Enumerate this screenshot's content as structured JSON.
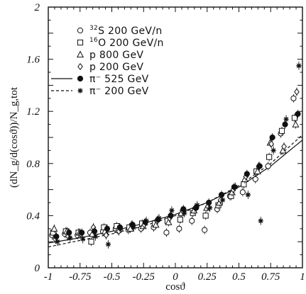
{
  "chart_data": {
    "type": "scatter",
    "xlabel": "cosϑ",
    "ylabel": "(dN_g/d(cosϑ))/N_g,tot",
    "xlim": [
      -1,
      1
    ],
    "ylim": [
      0,
      2
    ],
    "grid": false,
    "legend_position": "top-left",
    "x_ticks": [
      "-1",
      "-0.75",
      "-0.5",
      "-0.25",
      "0",
      "0.25",
      "0.5",
      "0.75",
      "1"
    ],
    "x_tick_values": [
      -1,
      -0.75,
      -0.5,
      -0.25,
      0,
      0.25,
      0.5,
      0.75,
      1
    ],
    "y_ticks": [
      "0",
      "0.4",
      "0.8",
      "1.2",
      "1.6",
      "2"
    ],
    "y_tick_values": [
      0,
      0.4,
      0.8,
      1.2,
      1.6,
      2
    ],
    "legend": [
      {
        "marker": "circle-open",
        "line": "none",
        "sup": "32",
        "label": "S 200 GeV/n"
      },
      {
        "marker": "square-open",
        "line": "none",
        "sup": "16",
        "label": "O 200 GeV/n"
      },
      {
        "marker": "triangle-open",
        "line": "none",
        "sup": "",
        "label": "p 800 GeV"
      },
      {
        "marker": "diamond-open",
        "line": "none",
        "sup": "",
        "label": "p 200 GeV"
      },
      {
        "marker": "circle-filled",
        "line": "solid",
        "sup": "",
        "label": "π⁻ 525 GeV"
      },
      {
        "marker": "asterisk",
        "line": "dashed",
        "sup": "",
        "label": "π⁻ 200 GeV"
      }
    ],
    "series": [
      {
        "marker": "circle-open",
        "x": [
          -0.95,
          -0.85,
          -0.75,
          -0.65,
          -0.55,
          -0.45,
          -0.35,
          -0.25,
          -0.15,
          -0.05,
          0.05,
          0.15,
          0.25,
          0.35,
          0.45,
          0.55,
          0.65,
          0.75,
          0.85,
          0.95
        ],
        "y": [
          0.25,
          0.26,
          0.25,
          0.27,
          0.28,
          0.3,
          0.29,
          0.3,
          0.31,
          0.27,
          0.3,
          0.36,
          0.29,
          0.45,
          0.55,
          0.58,
          0.68,
          0.78,
          1.03,
          1.3
        ]
      },
      {
        "marker": "square-open",
        "x": [
          -0.95,
          -0.85,
          -0.75,
          -0.65,
          -0.55,
          -0.45,
          -0.35,
          -0.25,
          -0.15,
          -0.05,
          0.05,
          0.15,
          0.25,
          0.35,
          0.45,
          0.55,
          0.65,
          0.75,
          0.85,
          0.95
        ],
        "y": [
          0.27,
          0.28,
          0.27,
          0.2,
          0.31,
          0.32,
          0.31,
          0.34,
          0.34,
          0.36,
          0.37,
          0.42,
          0.4,
          0.48,
          0.55,
          0.64,
          0.74,
          0.85,
          1.05,
          1.15
        ]
      },
      {
        "marker": "triangle-open",
        "x": [
          -0.95,
          -0.85,
          -0.75,
          -0.65,
          -0.55,
          -0.45,
          -0.35,
          -0.25,
          -0.15,
          -0.05,
          0.05,
          0.15,
          0.25,
          0.35,
          0.45,
          0.55,
          0.65,
          0.75,
          0.85,
          0.95
        ],
        "y": [
          0.3,
          0.28,
          0.27,
          0.26,
          0.28,
          0.29,
          0.3,
          0.32,
          0.33,
          0.35,
          0.42,
          0.44,
          0.46,
          0.5,
          0.58,
          0.68,
          0.74,
          0.96,
          0.9,
          1.1
        ]
      },
      {
        "marker": "diamond-open",
        "x": [
          -0.95,
          -0.85,
          -0.75,
          -0.65,
          -0.55,
          -0.45,
          -0.35,
          -0.25,
          -0.15,
          -0.05,
          0.05,
          0.15,
          0.25,
          0.35,
          0.45,
          0.55,
          0.65,
          0.75,
          0.85,
          0.95
        ],
        "y": [
          0.22,
          0.24,
          0.26,
          0.31,
          0.25,
          0.28,
          0.33,
          0.33,
          0.36,
          0.38,
          0.44,
          0.46,
          0.47,
          0.52,
          0.6,
          0.7,
          0.78,
          0.95,
          0.93,
          1.35
        ]
      },
      {
        "marker": "circle-filled",
        "x": [
          -0.95,
          -0.85,
          -0.75,
          -0.65,
          -0.55,
          -0.45,
          -0.35,
          -0.25,
          -0.15,
          -0.05,
          0.05,
          0.15,
          0.25,
          0.35,
          0.45,
          0.55,
          0.65,
          0.75,
          0.85,
          0.95
        ],
        "y": [
          0.24,
          0.27,
          0.27,
          0.28,
          0.3,
          0.31,
          0.33,
          0.35,
          0.37,
          0.4,
          0.45,
          0.46,
          0.5,
          0.56,
          0.62,
          0.72,
          0.78,
          1.0,
          1.1,
          1.18
        ]
      },
      {
        "marker": "asterisk",
        "x": [
          -0.95,
          -0.85,
          -0.75,
          -0.65,
          -0.55,
          -0.45,
          -0.35,
          -0.25,
          -0.15,
          -0.05,
          0.05,
          0.15,
          0.25,
          0.35,
          0.45,
          0.55,
          0.65,
          0.75,
          0.85,
          0.95
        ],
        "y": [
          0.2,
          0.23,
          0.22,
          0.24,
          0.18,
          0.3,
          0.31,
          0.36,
          0.38,
          0.44,
          0.42,
          0.48,
          0.46,
          0.52,
          0.62,
          0.56,
          0.36,
          0.9,
          1.14,
          1.55
        ]
      }
    ],
    "fit_curves": [
      {
        "style": "solid",
        "x": [
          -1,
          -0.75,
          -0.5,
          -0.25,
          0,
          0.25,
          0.5,
          0.75,
          1
        ],
        "y": [
          0.19,
          0.23,
          0.28,
          0.34,
          0.41,
          0.5,
          0.62,
          0.78,
          0.98
        ]
      },
      {
        "style": "dashed",
        "x": [
          -1,
          -0.75,
          -0.5,
          -0.25,
          0,
          0.25,
          0.5,
          0.75,
          1
        ],
        "y": [
          0.16,
          0.21,
          0.26,
          0.32,
          0.4,
          0.5,
          0.63,
          0.8,
          1.02
        ]
      }
    ]
  }
}
